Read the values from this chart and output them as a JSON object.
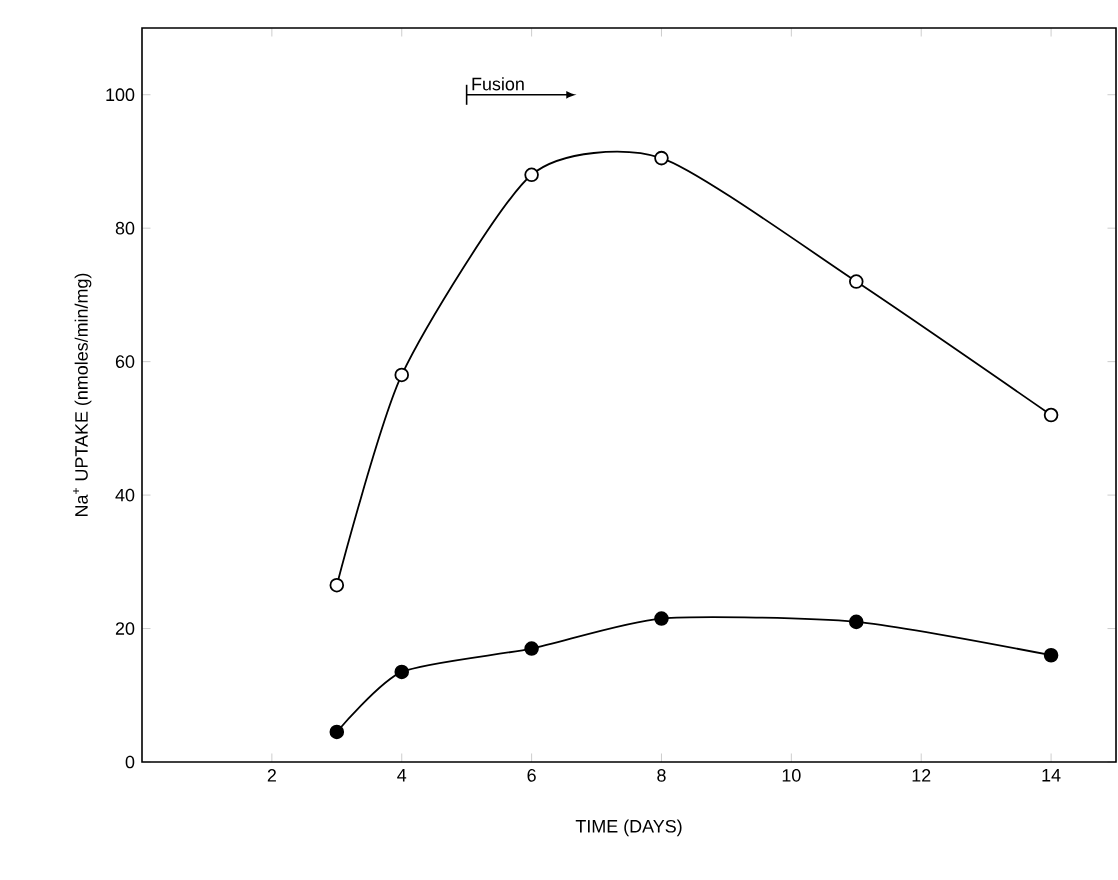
{
  "chart_data": {
    "type": "line",
    "xlabel": "TIME (DAYS)",
    "ylabel": "Na$^{+}$ UPTAKE (nmoles/min/mg)",
    "x": [
      3,
      4,
      6,
      8,
      11,
      14
    ],
    "series": [
      {
        "color": "#000000",
        "values": [
          26.5,
          58,
          88,
          90.5,
          72,
          52
        ]
      },
      {
        "color": "#000000",
        "values": [
          4.5,
          13.5,
          17,
          21.5,
          21,
          16
        ]
      }
    ],
    "xlim": [
      0,
      15
    ],
    "ylim": [
      0,
      110
    ],
    "xticks": [
      2,
      4,
      6,
      8,
      10,
      12,
      14
    ],
    "yticks": [
      0,
      20,
      40,
      60,
      80,
      100
    ],
    "marker": "circle",
    "line_style": "solid",
    "grid": false,
    "annotations": [
      "Fusion"
    ]
  }
}
